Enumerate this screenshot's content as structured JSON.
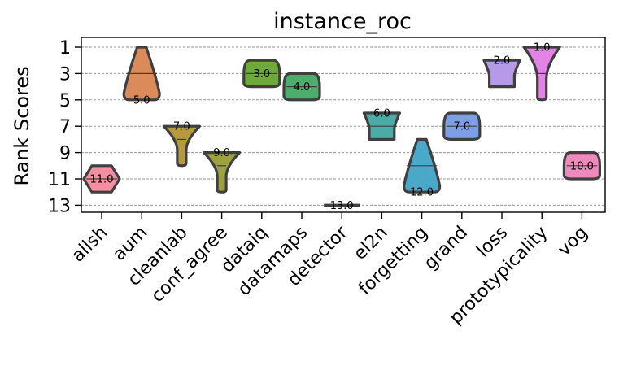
{
  "chart_data": {
    "type": "violin",
    "title": "instance_roc",
    "xlabel": "",
    "ylabel": "Rank Scores",
    "y_inverted": true,
    "ylim": [
      13.5,
      0.2
    ],
    "yticks": [
      1,
      3,
      5,
      7,
      9,
      11,
      13
    ],
    "grid": true,
    "categories": [
      "allsh",
      "aum",
      "cleanlab",
      "conf_agree",
      "dataiq",
      "datamaps",
      "detector",
      "el2n",
      "forgetting",
      "grand",
      "loss",
      "prototypicality",
      "vog"
    ],
    "series": [
      {
        "name": "allsh",
        "color": "#f38fa0",
        "min": 10.0,
        "max": 12.0,
        "median": 11.0,
        "label": "11.0",
        "shape": "hex"
      },
      {
        "name": "aum",
        "color": "#db8a59",
        "min": 1.0,
        "max": 5.0,
        "median": 3.0,
        "label": "5.0",
        "shape": "spike-top"
      },
      {
        "name": "cleanlab",
        "color": "#b79a3f",
        "min": 7.0,
        "max": 10.0,
        "median": 8.0,
        "label": "7.0",
        "shape": "funnel"
      },
      {
        "name": "conf_agree",
        "color": "#9da23f",
        "min": 9.0,
        "max": 12.0,
        "median": 10.0,
        "label": "9.0",
        "shape": "funnel"
      },
      {
        "name": "dataiq",
        "color": "#6daa3a",
        "min": 2.0,
        "max": 4.0,
        "median": 3.0,
        "label": "3.0",
        "shape": "blob"
      },
      {
        "name": "datamaps",
        "color": "#4cae6d",
        "min": 3.0,
        "max": 5.0,
        "median": 4.0,
        "label": "4.0",
        "shape": "blob"
      },
      {
        "name": "detector",
        "color": "#4aad8f",
        "min": 13.0,
        "max": 13.0,
        "median": 13.0,
        "label": "13.0",
        "shape": "flat"
      },
      {
        "name": "el2n",
        "color": "#4aaba7",
        "min": 6.0,
        "max": 8.0,
        "median": 7.0,
        "label": "6.0",
        "shape": "funnel-short"
      },
      {
        "name": "forgetting",
        "color": "#4aa8c9",
        "min": 8.0,
        "max": 12.0,
        "median": 10.0,
        "label": "12.0",
        "shape": "spike-top"
      },
      {
        "name": "grand",
        "color": "#7e9fe6",
        "min": 6.0,
        "max": 8.0,
        "median": 7.0,
        "label": "7.0",
        "shape": "blob"
      },
      {
        "name": "loss",
        "color": "#b49ae9",
        "min": 2.0,
        "max": 4.0,
        "median": 2.0,
        "label": "2.0",
        "shape": "funnel-short"
      },
      {
        "name": "prototypicality",
        "color": "#e483e6",
        "min": 1.0,
        "max": 5.0,
        "median": 3.0,
        "label": "1.0",
        "shape": "funnel"
      },
      {
        "name": "vog",
        "color": "#f089be",
        "min": 9.0,
        "max": 11.0,
        "median": 10.0,
        "label": "10.0",
        "shape": "blob"
      }
    ]
  }
}
